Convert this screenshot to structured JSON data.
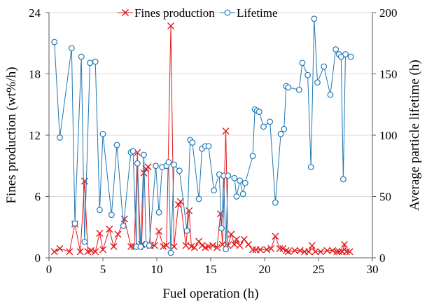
{
  "chart_data": {
    "type": "line",
    "xlabel": "Fuel operation (h)",
    "ylabel_left": "Fines production (wt%/h)",
    "ylabel_right": "Average particle lifetime (h)",
    "xlim": [
      0,
      30
    ],
    "ylim_left": [
      0,
      24
    ],
    "ylim_right": [
      0,
      200
    ],
    "x_ticks": [
      0,
      5,
      10,
      15,
      20,
      25,
      30
    ],
    "y_ticks_left": [
      0,
      6,
      12,
      18,
      24
    ],
    "y_ticks_right": [
      0,
      50,
      100,
      150,
      200
    ],
    "grid": "horizontal",
    "legend_position": "top",
    "series": [
      {
        "name": "Fines production",
        "axis": "left",
        "color": "#e31a1c",
        "marker": "x",
        "x": [
          0.5,
          1.0,
          1.9,
          2.4,
          2.9,
          3.3,
          3.6,
          3.9,
          4.3,
          4.7,
          5.0,
          5.6,
          6.0,
          6.4,
          7.0,
          7.6,
          7.9,
          8.2,
          8.4,
          8.6,
          8.8,
          9.0,
          9.2,
          9.4,
          9.8,
          10.2,
          10.6,
          10.9,
          11.3,
          11.6,
          12.0,
          12.2,
          12.7,
          13.0,
          13.2,
          13.5,
          13.9,
          14.2,
          14.5,
          14.8,
          15.2,
          15.6,
          15.9,
          16.1,
          16.4,
          16.6,
          16.9,
          17.2,
          17.4,
          17.7,
          18.1,
          18.5,
          18.9,
          19.2,
          19.6,
          20.2,
          20.6,
          21.0,
          21.4,
          21.7,
          22.0,
          22.2,
          22.8,
          23.3,
          23.7,
          24.1,
          24.4,
          24.7,
          25.2,
          25.8,
          26.3,
          26.7,
          26.9,
          27.2,
          27.4,
          27.6,
          27.9
        ],
        "y": [
          0.6,
          0.9,
          0.6,
          3.3,
          0.6,
          7.5,
          0.6,
          0.7,
          0.6,
          2.4,
          0.8,
          2.8,
          1.1,
          2.3,
          3.8,
          1.1,
          1.1,
          10.3,
          1.1,
          1.3,
          8.3,
          8.7,
          8.9,
          1.2,
          1.2,
          2.6,
          1.1,
          1.2,
          22.7,
          1.1,
          5.2,
          5.5,
          1.2,
          4.6,
          1.1,
          1.0,
          1.6,
          1.2,
          1.0,
          1.1,
          1.2,
          1.0,
          4.3,
          1.3,
          12.4,
          1.2,
          2.3,
          1.3,
          1.8,
          1.2,
          1.8,
          1.3,
          0.8,
          0.8,
          0.8,
          0.8,
          0.9,
          2.1,
          0.9,
          0.9,
          0.7,
          0.6,
          0.7,
          0.7,
          0.6,
          0.6,
          1.2,
          0.6,
          0.6,
          0.7,
          0.7,
          0.6,
          0.6,
          0.6,
          1.3,
          0.6,
          0.6
        ]
      },
      {
        "name": "Lifetime",
        "axis": "right",
        "color": "#1f77b4",
        "marker": "circle",
        "x": [
          0.5,
          1.0,
          2.1,
          2.4,
          3.0,
          3.3,
          3.8,
          4.3,
          4.7,
          5.0,
          5.8,
          6.3,
          6.9,
          7.6,
          7.8,
          8.1,
          8.2,
          8.5,
          8.8,
          9.0,
          9.3,
          9.9,
          10.2,
          10.5,
          10.9,
          11.1,
          11.3,
          11.6,
          12.1,
          12.8,
          13.1,
          13.3,
          13.9,
          14.2,
          14.5,
          14.8,
          15.3,
          15.8,
          16.0,
          16.2,
          16.4,
          16.6,
          17.2,
          17.4,
          17.7,
          18.0,
          18.2,
          18.9,
          19.1,
          19.3,
          19.5,
          19.9,
          20.5,
          21.0,
          21.5,
          21.8,
          22.0,
          22.2,
          23.2,
          23.5,
          24.0,
          24.3,
          24.6,
          24.9,
          25.5,
          26.1,
          26.6,
          26.9,
          27.1,
          27.3,
          27.5,
          28.0
        ],
        "y": [
          176,
          98,
          171,
          28,
          164,
          13,
          159,
          160,
          39,
          101,
          35,
          92,
          26,
          86,
          87,
          9,
          77,
          9,
          84,
          11,
          10,
          75,
          37,
          74,
          75,
          78,
          4,
          76,
          71,
          22,
          96,
          94,
          48,
          89,
          91,
          91,
          55,
          68,
          24,
          67,
          7,
          67,
          65,
          50,
          63,
          52,
          61,
          83,
          121,
          120,
          119,
          107,
          111,
          45,
          101,
          105,
          140,
          139,
          137,
          159,
          149,
          74,
          195,
          143,
          156,
          133,
          170,
          166,
          164,
          64,
          166,
          164
        ]
      }
    ]
  }
}
